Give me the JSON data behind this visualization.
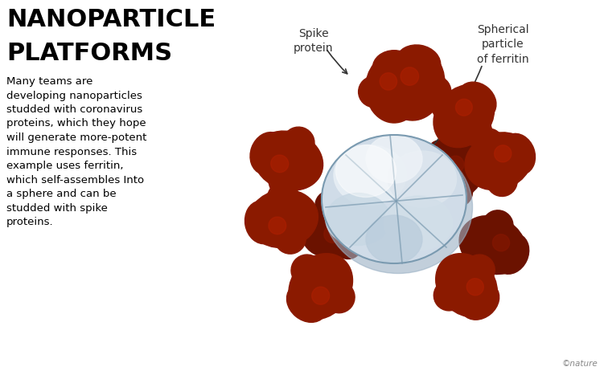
{
  "title_line1": "NANOPARTICLE",
  "title_line2": "PLATFORMS",
  "body_text": "Many teams are\ndeveloping nanoparticles\nstudded with coronavirus\nproteins, which they hope\nwill generate more-potent\nimmune responses. This\nexample uses ferritin,\nwhich self-assembles Into\na sphere and can be\nstudded with spike\nproteins.",
  "label_spike": "Spike\nprotein",
  "label_ferritin": "Spherical\nparticle\nof ferritin",
  "copyright": "©nature",
  "bg_color": "#ffffff",
  "title_color": "#000000",
  "body_color": "#000000",
  "label_color": "#333333",
  "spike_color": "#8B1A00",
  "spike_highlight": "#B22000",
  "ferritin_color_main": "#d0dce8",
  "ferritin_color_light": "#eef2f7",
  "ferritin_color_shadow": "#9ab0c4",
  "ferritin_outline": "#7a9ab0"
}
